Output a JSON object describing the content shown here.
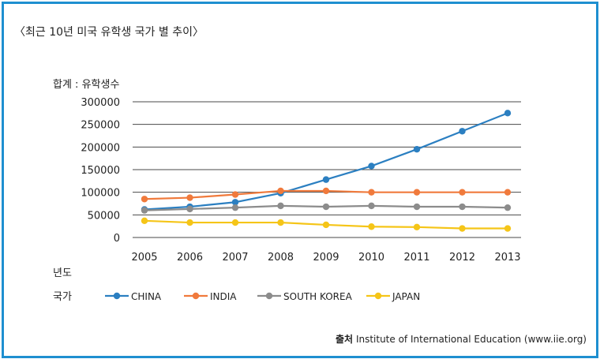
{
  "title": "〈최근 10년 미국 유학생 국가 별 추이〉",
  "source_label": "출처",
  "source_text": "Institute of International Education (www.iie.org)",
  "chart_data": {
    "type": "line",
    "ylabel": "합계 : 유학생수",
    "xlabel": "년도",
    "legend_title": "국가",
    "legend_position": "bottom-left",
    "grid": true,
    "x": [
      "2005",
      "2006",
      "2007",
      "2008",
      "2009",
      "2010",
      "2011",
      "2012",
      "2013"
    ],
    "yticks": [
      "300000",
      "250000",
      "200000",
      "150000",
      "100000",
      "50000",
      "0"
    ],
    "ylim": [
      0,
      300000
    ],
    "series": [
      {
        "name": "CHINA",
        "color": "#2b7fc1",
        "values": [
          62000,
          68000,
          78000,
          98000,
          128000,
          158000,
          195000,
          235000,
          275000
        ]
      },
      {
        "name": "INDIA",
        "color": "#f07a3c",
        "values": [
          85000,
          88000,
          95000,
          103000,
          103000,
          100000,
          100000,
          100000,
          100000
        ]
      },
      {
        "name": "SOUTH KOREA",
        "color": "#8c8c8c",
        "values": [
          60000,
          63000,
          66000,
          70000,
          68000,
          70000,
          68000,
          68000,
          66000
        ]
      },
      {
        "name": "JAPAN",
        "color": "#f5c518",
        "values": [
          37000,
          33000,
          33000,
          33000,
          28000,
          24000,
          23000,
          20000,
          20000
        ]
      }
    ]
  }
}
